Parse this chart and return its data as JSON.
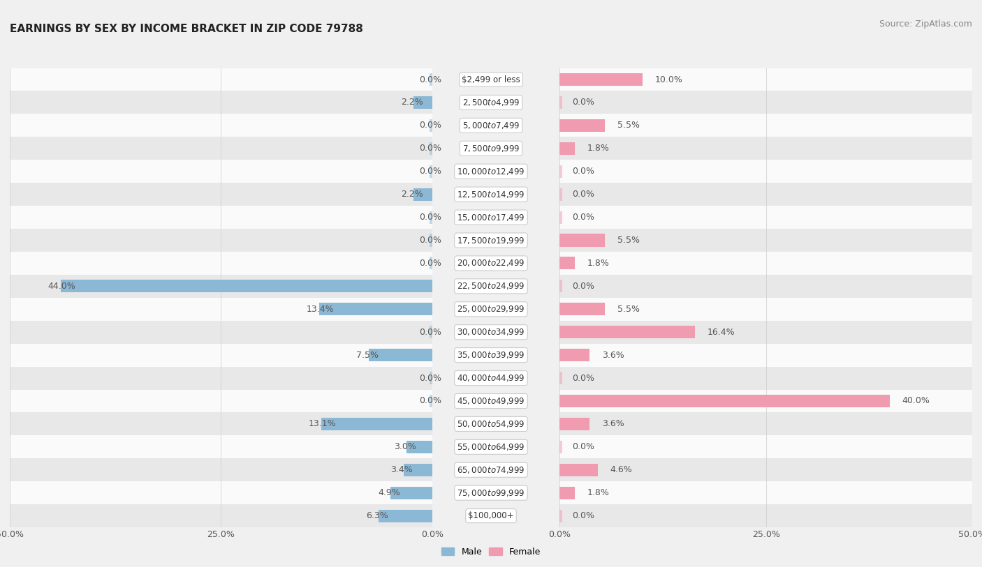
{
  "title": "EARNINGS BY SEX BY INCOME BRACKET IN ZIP CODE 79788",
  "source": "Source: ZipAtlas.com",
  "categories": [
    "$2,499 or less",
    "$2,500 to $4,999",
    "$5,000 to $7,499",
    "$7,500 to $9,999",
    "$10,000 to $12,499",
    "$12,500 to $14,999",
    "$15,000 to $17,499",
    "$17,500 to $19,999",
    "$20,000 to $22,499",
    "$22,500 to $24,999",
    "$25,000 to $29,999",
    "$30,000 to $34,999",
    "$35,000 to $39,999",
    "$40,000 to $44,999",
    "$45,000 to $49,999",
    "$50,000 to $54,999",
    "$55,000 to $64,999",
    "$65,000 to $74,999",
    "$75,000 to $99,999",
    "$100,000+"
  ],
  "male": [
    0.0,
    2.2,
    0.0,
    0.0,
    0.0,
    2.2,
    0.0,
    0.0,
    0.0,
    44.0,
    13.4,
    0.0,
    7.5,
    0.0,
    0.0,
    13.1,
    3.0,
    3.4,
    4.9,
    6.3
  ],
  "female": [
    10.0,
    0.0,
    5.5,
    1.8,
    0.0,
    0.0,
    0.0,
    5.5,
    1.8,
    0.0,
    5.5,
    16.4,
    3.6,
    0.0,
    40.0,
    3.6,
    0.0,
    4.6,
    1.8,
    0.0
  ],
  "male_color": "#8bb8d4",
  "female_color": "#f09baf",
  "label_color": "#555555",
  "bg_color": "#f0f0f0",
  "row_even_color": "#fafafa",
  "row_odd_color": "#e8e8e8",
  "xlim": 50.0,
  "bar_height": 0.55,
  "title_fontsize": 11,
  "source_fontsize": 9,
  "value_fontsize": 9,
  "tick_fontsize": 9,
  "cat_fontsize": 8.5
}
